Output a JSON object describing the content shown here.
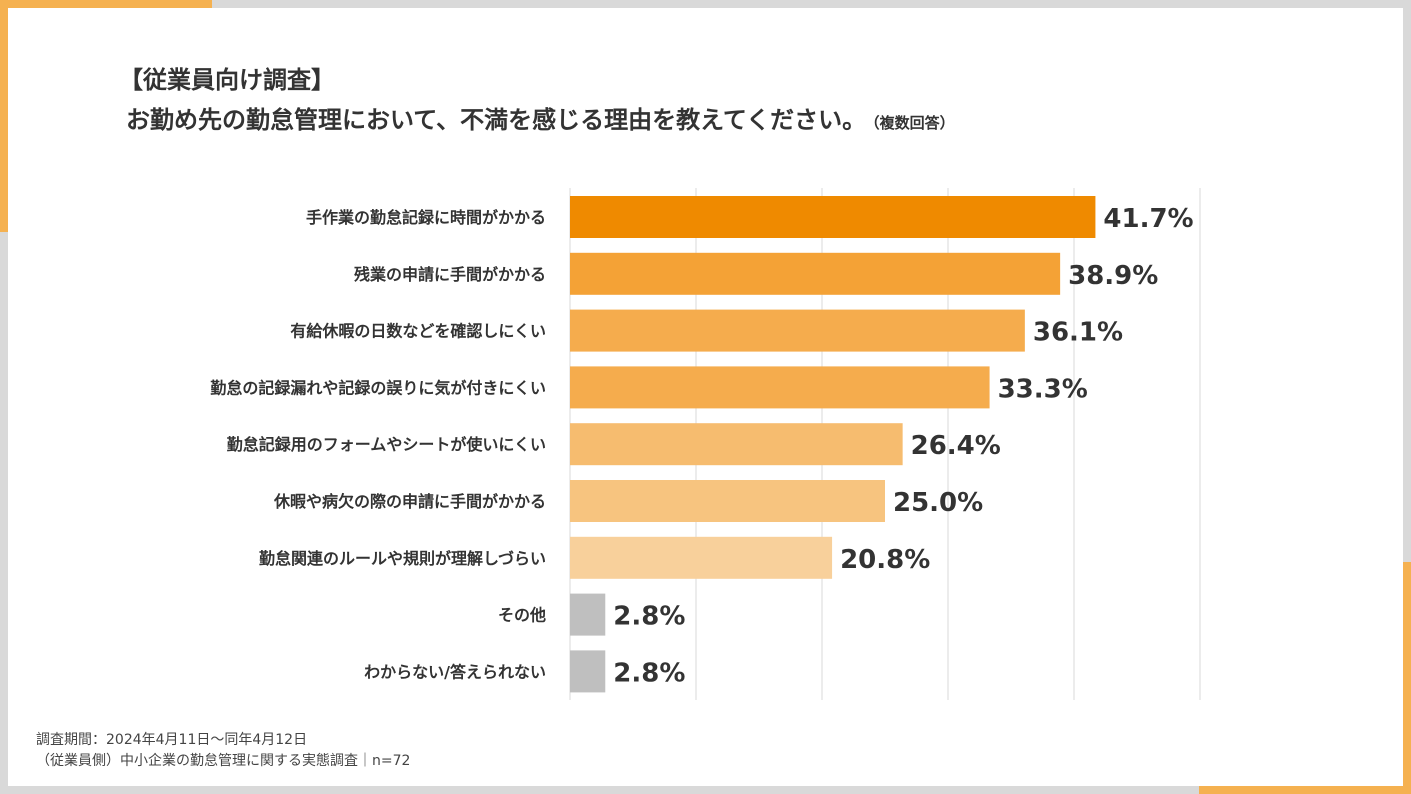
{
  "title": {
    "line1": "【従業員向け調査】",
    "line2": "お勤め先の勤怠管理において、不満を感じる理由を教えてください。",
    "note": "（複数回答）"
  },
  "footer": {
    "period": "調査期間：2024年4月11日～同年4月12日",
    "source": "（従業員側）中小企業の勤怠管理に関する実態調査｜n=72"
  },
  "chart_data": {
    "type": "bar",
    "orientation": "horizontal",
    "categories": [
      "手作業の勤怠記録に時間がかかる",
      "残業の申請に手間がかかる",
      "有給休暇の日数などを確認しにくい",
      "勤怠の記録漏れや記録の誤りに気が付きにくい",
      "勤怠記録用のフォームやシートが使いにくい",
      "休暇や病欠の際の申請に手間がかかる",
      "勤怠関連のルールや規則が理解しづらい",
      "その他",
      "わからない/答えられない"
    ],
    "values": [
      41.7,
      38.9,
      36.1,
      33.3,
      26.4,
      25.0,
      20.8,
      2.8,
      2.8
    ],
    "value_labels": [
      "41.7%",
      "38.9%",
      "36.1%",
      "33.3%",
      "26.4%",
      "25.0%",
      "20.8%",
      "2.8%",
      "2.8%"
    ],
    "colors": [
      "#ef8a00",
      "#f4a236",
      "#f5ac4d",
      "#f5ac4d",
      "#f6bc6f",
      "#f7c47f",
      "#f8d09b",
      "#bfbfbf",
      "#bfbfbf"
    ],
    "xlim": [
      0,
      50
    ],
    "grid": true
  }
}
